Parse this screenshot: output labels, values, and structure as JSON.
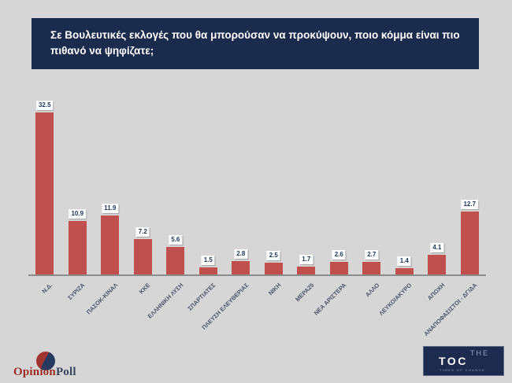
{
  "background_color": "#d6d6d6",
  "header": {
    "title": "Σε Βουλευτικές εκλογές που θα μπορούσαν να προκύψουν, ποιο κόμμα είναι πιο πιθανό να ψηφίζατε;",
    "bg_color": "#1b2b4d",
    "text_color": "#ffffff"
  },
  "chart_data": {
    "type": "bar",
    "title": "Σε Βουλευτικές εκλογές που θα μπορούσαν να προκύψουν, ποιο κόμμα είναι πιο πιθανό να ψηφίζατε;",
    "categories": [
      "Ν.Δ.",
      "ΣΥΡΙΖΑ",
      "ΠΑΣΟΚ-ΚΙΝΑΛ",
      "ΚΚΕ",
      "ΕΛΛΗΝΙΚΗ ΛΥΣΗ",
      "ΣΠΑΡΤΙΑΤΕΣ",
      "ΠΛΕΥΣΗ ΕΛΕΥΘΕΡΙΑΣ",
      "ΝΙΚΗ",
      "ΜΕΡΑ25",
      "ΝΕΑ ΑΡΙΣΤΕΡΑ",
      "ΑΛΛΟ",
      "ΛΕΥΚΟ/ΑΚΥΡΟ",
      "ΑΠΟΧΗ",
      "ΑΝΑΠΟΦΑΣΙΣΤΟΙ - ΔΓ/ΔΑ"
    ],
    "values": [
      32.5,
      10.9,
      11.9,
      7.2,
      5.6,
      1.5,
      2.8,
      2.5,
      1.7,
      2.6,
      2.7,
      1.4,
      4.1,
      12.7
    ],
    "xlabel": "",
    "ylabel": "",
    "ylim": [
      0,
      36
    ],
    "grid": false,
    "legend": "none",
    "value_labels_shown": true,
    "bar_color": "#c0504d",
    "value_label_bg": "#ffffff",
    "value_label_color": "#17375e",
    "axis_line_color": "#8c8c8c",
    "category_label_color": "#4a5468",
    "category_label_rotation_deg": -45
  },
  "footer": {
    "opinionpoll": {
      "brand_first": "Opinion",
      "brand_second": "Poll",
      "red_color": "#9e2b25",
      "navy_color": "#39445c"
    },
    "toc": {
      "line1": "THE",
      "line2": "TOC",
      "tagline": "TIMES OF CHANGE",
      "bg_color": "#1d2c4e"
    }
  }
}
